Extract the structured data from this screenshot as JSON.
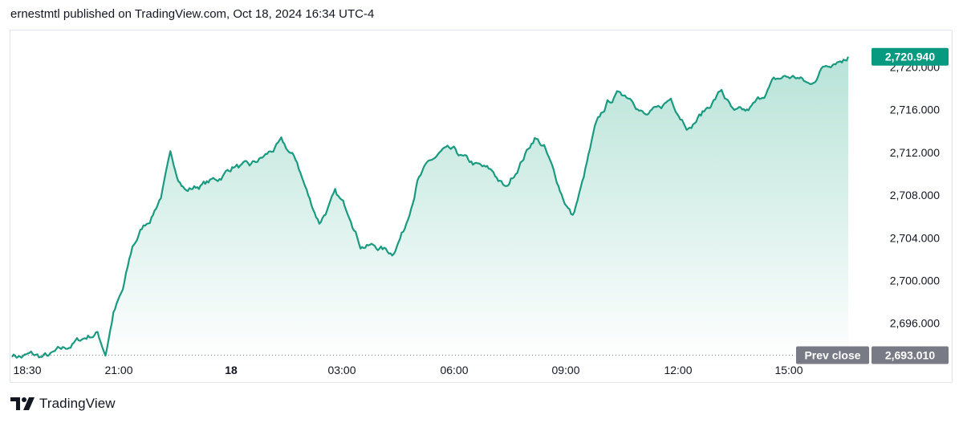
{
  "header": {
    "text": "ernestmtl published on TradingView.com, Oct 18, 2024 16:34 UTC-4"
  },
  "footer": {
    "brand": "TradingView"
  },
  "colors": {
    "line": "#1a9a80",
    "area_top": "#b8e3d8",
    "area_bottom": "#ffffff",
    "badge": "#089981",
    "prev_badge": "#787b86",
    "grid_dots": "#787b86"
  },
  "chart_data": {
    "type": "area",
    "x_ticks": [
      "18:30",
      "21:00",
      "18",
      "03:00",
      "06:00",
      "09:00",
      "12:00",
      "15:00"
    ],
    "y_ticks": [
      "2,696.000",
      "2,700.000",
      "2,704.000",
      "2,708.000",
      "2,712.000",
      "2,716.000",
      "2,720.000"
    ],
    "y_range": [
      2692.3,
      2723.4
    ],
    "last_price_label": "2,720.940",
    "prev_close_label_text": "Prev close",
    "prev_close_value_label": "2,693.010",
    "prev_close": 2693.01,
    "series": [
      {
        "values": [
          [
            0.0,
            2693.1
          ],
          [
            0.3,
            2692.9
          ],
          [
            0.6,
            2693.0
          ],
          [
            0.9,
            2692.8
          ],
          [
            1.2,
            2692.9
          ],
          [
            1.6,
            2693.4
          ],
          [
            2.0,
            2694.2
          ],
          [
            2.4,
            2694.8
          ],
          [
            2.7,
            2695.1
          ],
          [
            2.95,
            2693.2
          ],
          [
            3.2,
            2697.0
          ],
          [
            3.5,
            2699.0
          ],
          [
            3.8,
            2703.0
          ],
          [
            4.1,
            2704.8
          ],
          [
            4.4,
            2706.0
          ],
          [
            4.7,
            2708.0
          ],
          [
            5.0,
            2711.5
          ],
          [
            5.2,
            2710.0
          ],
          [
            5.5,
            2708.5
          ],
          [
            6.0,
            2709.0
          ],
          [
            6.5,
            2709.5
          ],
          [
            7.0,
            2710.8
          ],
          [
            7.5,
            2710.5
          ],
          [
            8.0,
            2711.6
          ],
          [
            8.5,
            2712.8
          ],
          [
            9.0,
            2711.0
          ],
          [
            9.4,
            2707.5
          ],
          [
            9.7,
            2705.5
          ],
          [
            10.2,
            2708.0
          ],
          [
            10.7,
            2706.0
          ],
          [
            11.0,
            2703.5
          ],
          [
            11.5,
            2703.2
          ],
          [
            12.0,
            2702.6
          ],
          [
            12.4,
            2705.0
          ],
          [
            12.8,
            2709.5
          ],
          [
            13.2,
            2711.0
          ],
          [
            13.6,
            2712.0
          ],
          [
            14.0,
            2711.8
          ],
          [
            14.4,
            2711.0
          ],
          [
            14.8,
            2710.5
          ],
          [
            15.2,
            2710.0
          ],
          [
            15.6,
            2708.5
          ],
          [
            16.0,
            2710.8
          ],
          [
            16.5,
            2713.5
          ],
          [
            16.8,
            2712.5
          ],
          [
            17.1,
            2710.0
          ],
          [
            17.4,
            2707.8
          ],
          [
            17.7,
            2706.0
          ],
          [
            18.0,
            2709.0
          ],
          [
            18.4,
            2714.0
          ],
          [
            18.8,
            2716.5
          ],
          [
            19.2,
            2717.6
          ],
          [
            19.6,
            2717.2
          ],
          [
            20.0,
            2715.5
          ],
          [
            20.4,
            2715.8
          ],
          [
            20.8,
            2717.0
          ],
          [
            21.1,
            2715.6
          ],
          [
            21.4,
            2714.5
          ],
          [
            21.9,
            2716.0
          ],
          [
            22.4,
            2717.8
          ],
          [
            22.8,
            2715.5
          ],
          [
            23.2,
            2715.6
          ],
          [
            23.6,
            2716.8
          ],
          [
            24.0,
            2718.5
          ],
          [
            24.4,
            2719.0
          ],
          [
            24.8,
            2719.0
          ],
          [
            25.2,
            2718.2
          ],
          [
            25.6,
            2720.0
          ],
          [
            26.0,
            2720.8
          ],
          [
            26.4,
            2720.94
          ]
        ]
      }
    ]
  }
}
